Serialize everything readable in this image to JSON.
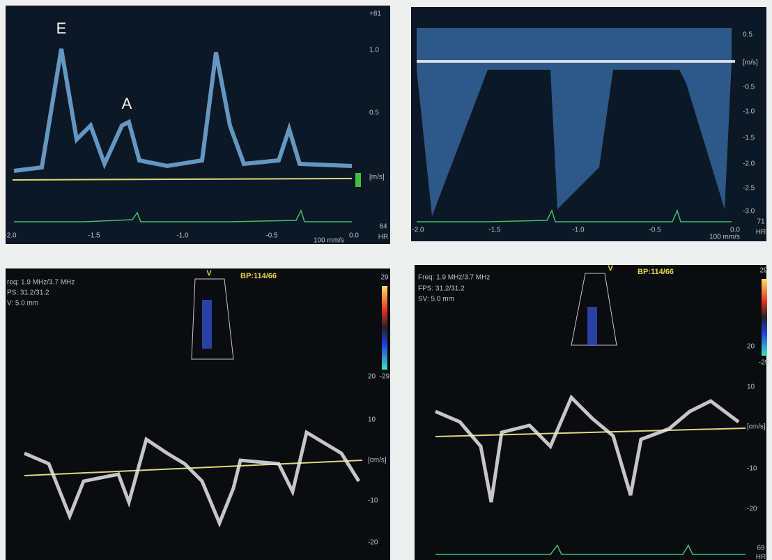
{
  "panels": [
    {
      "labels": [
        "E",
        "A"
      ],
      "y_axis": [
        "+81",
        "1.0",
        "0.5",
        "[m/s]"
      ],
      "x_axis": [
        "-2.0",
        "-1.5",
        "-1.0",
        "-0.5",
        "0.0"
      ],
      "hr": "64",
      "hr_label": "HR",
      "speed": "100 mm/s"
    },
    {
      "y_axis": [
        "0.5",
        "[m/s]",
        "-0.5",
        "-1.0",
        "-1.5",
        "-2.0",
        "-2.5",
        "-3.0"
      ],
      "x_axis": [
        "-2.0",
        "-1.5",
        "-1.0",
        "-0.5",
        "0.0"
      ],
      "hr": "71",
      "hr_label": "HR",
      "speed": "100 mm/s"
    },
    {
      "marker": "V",
      "bp": "BP:114/66",
      "settings": [
        "req: 1.9 MHz/3.7 MHz",
        "PS: 31.2/31.2",
        "V: 5.0 mm"
      ],
      "scale": [
        "29",
        "-29"
      ],
      "y_axis": [
        "20",
        "10",
        "[cm/s]",
        "-10",
        "-20"
      ]
    },
    {
      "marker": "V",
      "bp": "BP:114/66",
      "settings": [
        "Freq: 1.9 MHz/3.7 MHz",
        "FPS: 31.2/31.2",
        "SV: 5.0 mm"
      ],
      "scale": [
        "29",
        "-29"
      ],
      "y_axis": [
        "20",
        "10",
        "[cm/s]",
        "-10",
        "-20"
      ],
      "hr": "69",
      "hr_label": "HR"
    }
  ]
}
